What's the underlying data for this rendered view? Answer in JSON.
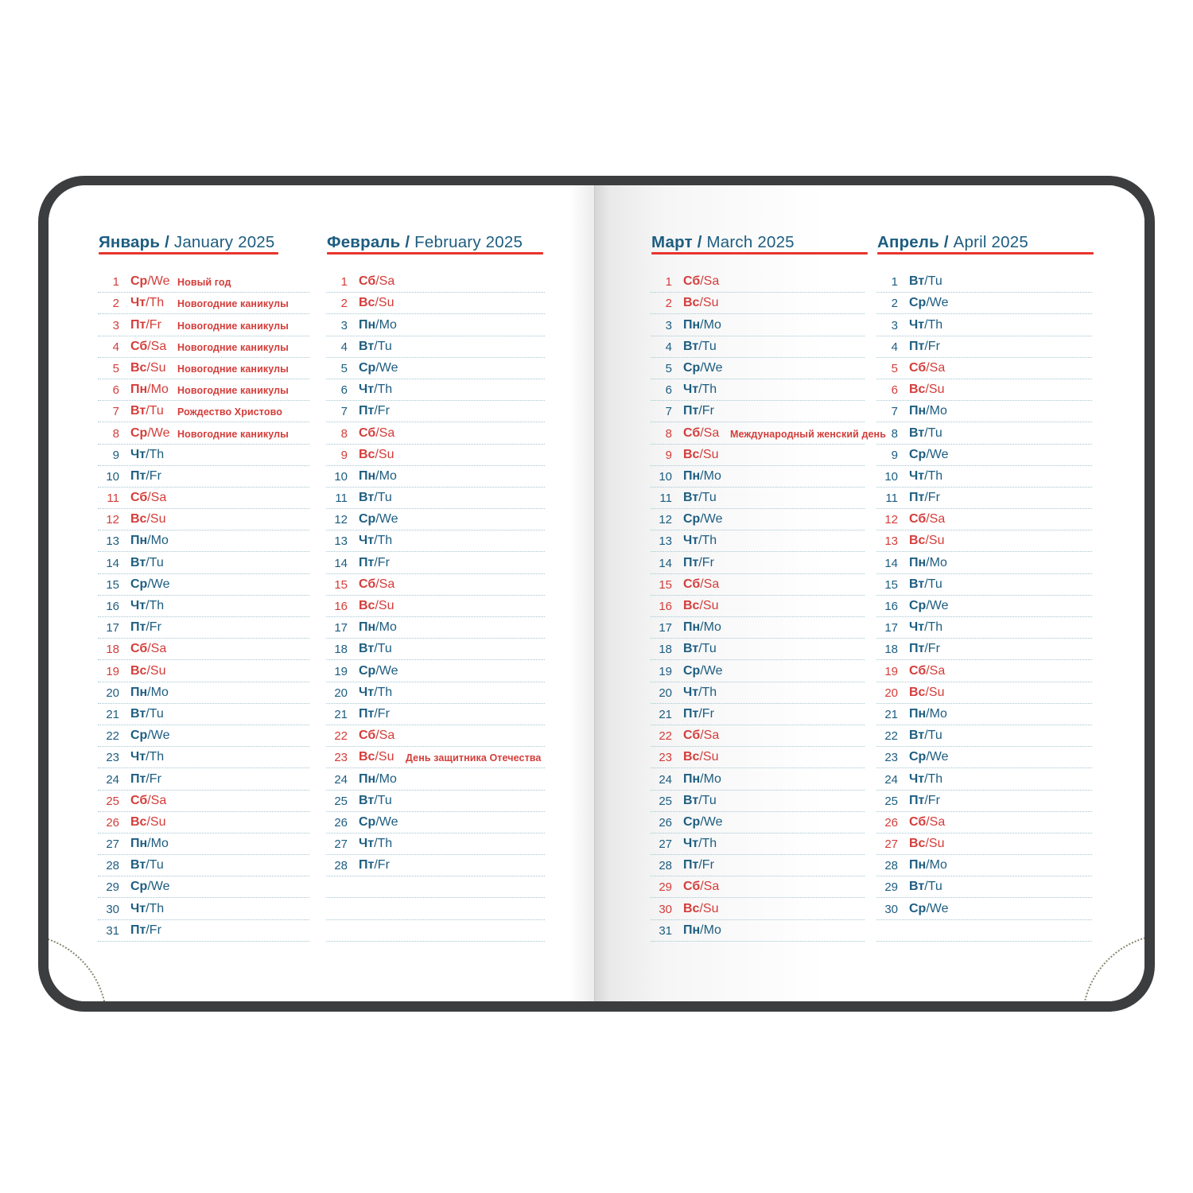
{
  "book": {
    "cover_color": "#3c3d3f",
    "text_blue": "#1d5d80",
    "text_red": "#d33d3a",
    "underline_red": "#e8342c",
    "row_line_blue": "#a3c6d2"
  },
  "months": [
    {
      "title_bold": "Январь /",
      "title_regular": "January 2025",
      "slots": 31,
      "days": [
        [
          1,
          "Ср",
          "We",
          1,
          "Новый год"
        ],
        [
          2,
          "Чт",
          "Th",
          1,
          "Новогодние каникулы"
        ],
        [
          3,
          "Пт",
          "Fr",
          1,
          "Новогодние каникулы"
        ],
        [
          4,
          "Сб",
          "Sa",
          1,
          "Новогодние каникулы"
        ],
        [
          5,
          "Вс",
          "Su",
          1,
          "Новогодние каникулы"
        ],
        [
          6,
          "Пн",
          "Mo",
          1,
          "Новогодние каникулы"
        ],
        [
          7,
          "Вт",
          "Tu",
          1,
          "Рождество Христово"
        ],
        [
          8,
          "Ср",
          "We",
          1,
          "Новогодние каникулы"
        ],
        [
          9,
          "Чт",
          "Th",
          0,
          ""
        ],
        [
          10,
          "Пт",
          "Fr",
          0,
          ""
        ],
        [
          11,
          "Сб",
          "Sa",
          1,
          ""
        ],
        [
          12,
          "Вс",
          "Su",
          1,
          ""
        ],
        [
          13,
          "Пн",
          "Mo",
          0,
          ""
        ],
        [
          14,
          "Вт",
          "Tu",
          0,
          ""
        ],
        [
          15,
          "Ср",
          "We",
          0,
          ""
        ],
        [
          16,
          "Чт",
          "Th",
          0,
          ""
        ],
        [
          17,
          "Пт",
          "Fr",
          0,
          ""
        ],
        [
          18,
          "Сб",
          "Sa",
          1,
          ""
        ],
        [
          19,
          "Вс",
          "Su",
          1,
          ""
        ],
        [
          20,
          "Пн",
          "Mo",
          0,
          ""
        ],
        [
          21,
          "Вт",
          "Tu",
          0,
          ""
        ],
        [
          22,
          "Ср",
          "We",
          0,
          ""
        ],
        [
          23,
          "Чт",
          "Th",
          0,
          ""
        ],
        [
          24,
          "Пт",
          "Fr",
          0,
          ""
        ],
        [
          25,
          "Сб",
          "Sa",
          1,
          ""
        ],
        [
          26,
          "Вс",
          "Su",
          1,
          ""
        ],
        [
          27,
          "Пн",
          "Mo",
          0,
          ""
        ],
        [
          28,
          "Вт",
          "Tu",
          0,
          ""
        ],
        [
          29,
          "Ср",
          "We",
          0,
          ""
        ],
        [
          30,
          "Чт",
          "Th",
          0,
          ""
        ],
        [
          31,
          "Пт",
          "Fr",
          0,
          ""
        ]
      ]
    },
    {
      "title_bold": "Февраль /",
      "title_regular": "February 2025",
      "slots": 31,
      "days": [
        [
          1,
          "Сб",
          "Sa",
          1,
          ""
        ],
        [
          2,
          "Вс",
          "Su",
          1,
          ""
        ],
        [
          3,
          "Пн",
          "Mo",
          0,
          ""
        ],
        [
          4,
          "Вт",
          "Tu",
          0,
          ""
        ],
        [
          5,
          "Ср",
          "We",
          0,
          ""
        ],
        [
          6,
          "Чт",
          "Th",
          0,
          ""
        ],
        [
          7,
          "Пт",
          "Fr",
          0,
          ""
        ],
        [
          8,
          "Сб",
          "Sa",
          1,
          ""
        ],
        [
          9,
          "Вс",
          "Su",
          1,
          ""
        ],
        [
          10,
          "Пн",
          "Mo",
          0,
          ""
        ],
        [
          11,
          "Вт",
          "Tu",
          0,
          ""
        ],
        [
          12,
          "Ср",
          "We",
          0,
          ""
        ],
        [
          13,
          "Чт",
          "Th",
          0,
          ""
        ],
        [
          14,
          "Пт",
          "Fr",
          0,
          ""
        ],
        [
          15,
          "Сб",
          "Sa",
          1,
          ""
        ],
        [
          16,
          "Вс",
          "Su",
          1,
          ""
        ],
        [
          17,
          "Пн",
          "Mo",
          0,
          ""
        ],
        [
          18,
          "Вт",
          "Tu",
          0,
          ""
        ],
        [
          19,
          "Ср",
          "We",
          0,
          ""
        ],
        [
          20,
          "Чт",
          "Th",
          0,
          ""
        ],
        [
          21,
          "Пт",
          "Fr",
          0,
          ""
        ],
        [
          22,
          "Сб",
          "Sa",
          1,
          ""
        ],
        [
          23,
          "Вс",
          "Su",
          1,
          "День защитника Отечества"
        ],
        [
          24,
          "Пн",
          "Mo",
          0,
          ""
        ],
        [
          25,
          "Вт",
          "Tu",
          0,
          ""
        ],
        [
          26,
          "Ср",
          "We",
          0,
          ""
        ],
        [
          27,
          "Чт",
          "Th",
          0,
          ""
        ],
        [
          28,
          "Пт",
          "Fr",
          0,
          ""
        ]
      ]
    },
    {
      "title_bold": "Март /",
      "title_regular": "March 2025",
      "slots": 31,
      "days": [
        [
          1,
          "Сб",
          "Sa",
          1,
          ""
        ],
        [
          2,
          "Вс",
          "Su",
          1,
          ""
        ],
        [
          3,
          "Пн",
          "Mo",
          0,
          ""
        ],
        [
          4,
          "Вт",
          "Tu",
          0,
          ""
        ],
        [
          5,
          "Ср",
          "We",
          0,
          ""
        ],
        [
          6,
          "Чт",
          "Th",
          0,
          ""
        ],
        [
          7,
          "Пт",
          "Fr",
          0,
          ""
        ],
        [
          8,
          "Сб",
          "Sa",
          1,
          "Международный женский день"
        ],
        [
          9,
          "Вс",
          "Su",
          1,
          ""
        ],
        [
          10,
          "Пн",
          "Mo",
          0,
          ""
        ],
        [
          11,
          "Вт",
          "Tu",
          0,
          ""
        ],
        [
          12,
          "Ср",
          "We",
          0,
          ""
        ],
        [
          13,
          "Чт",
          "Th",
          0,
          ""
        ],
        [
          14,
          "Пт",
          "Fr",
          0,
          ""
        ],
        [
          15,
          "Сб",
          "Sa",
          1,
          ""
        ],
        [
          16,
          "Вс",
          "Su",
          1,
          ""
        ],
        [
          17,
          "Пн",
          "Mo",
          0,
          ""
        ],
        [
          18,
          "Вт",
          "Tu",
          0,
          ""
        ],
        [
          19,
          "Ср",
          "We",
          0,
          ""
        ],
        [
          20,
          "Чт",
          "Th",
          0,
          ""
        ],
        [
          21,
          "Пт",
          "Fr",
          0,
          ""
        ],
        [
          22,
          "Сб",
          "Sa",
          1,
          ""
        ],
        [
          23,
          "Вс",
          "Su",
          1,
          ""
        ],
        [
          24,
          "Пн",
          "Mo",
          0,
          ""
        ],
        [
          25,
          "Вт",
          "Tu",
          0,
          ""
        ],
        [
          26,
          "Ср",
          "We",
          0,
          ""
        ],
        [
          27,
          "Чт",
          "Th",
          0,
          ""
        ],
        [
          28,
          "Пт",
          "Fr",
          0,
          ""
        ],
        [
          29,
          "Сб",
          "Sa",
          1,
          ""
        ],
        [
          30,
          "Вс",
          "Su",
          1,
          ""
        ],
        [
          31,
          "Пн",
          "Mo",
          0,
          ""
        ]
      ]
    },
    {
      "title_bold": "Апрель /",
      "title_regular": "April 2025",
      "slots": 31,
      "days": [
        [
          1,
          "Вт",
          "Tu",
          0,
          ""
        ],
        [
          2,
          "Ср",
          "We",
          0,
          ""
        ],
        [
          3,
          "Чт",
          "Th",
          0,
          ""
        ],
        [
          4,
          "Пт",
          "Fr",
          0,
          ""
        ],
        [
          5,
          "Сб",
          "Sa",
          1,
          ""
        ],
        [
          6,
          "Вс",
          "Su",
          1,
          ""
        ],
        [
          7,
          "Пн",
          "Mo",
          0,
          ""
        ],
        [
          8,
          "Вт",
          "Tu",
          0,
          ""
        ],
        [
          9,
          "Ср",
          "We",
          0,
          ""
        ],
        [
          10,
          "Чт",
          "Th",
          0,
          ""
        ],
        [
          11,
          "Пт",
          "Fr",
          0,
          ""
        ],
        [
          12,
          "Сб",
          "Sa",
          1,
          ""
        ],
        [
          13,
          "Вс",
          "Su",
          1,
          ""
        ],
        [
          14,
          "Пн",
          "Mo",
          0,
          ""
        ],
        [
          15,
          "Вт",
          "Tu",
          0,
          ""
        ],
        [
          16,
          "Ср",
          "We",
          0,
          ""
        ],
        [
          17,
          "Чт",
          "Th",
          0,
          ""
        ],
        [
          18,
          "Пт",
          "Fr",
          0,
          ""
        ],
        [
          19,
          "Сб",
          "Sa",
          1,
          ""
        ],
        [
          20,
          "Вс",
          "Su",
          1,
          ""
        ],
        [
          21,
          "Пн",
          "Mo",
          0,
          ""
        ],
        [
          22,
          "Вт",
          "Tu",
          0,
          ""
        ],
        [
          23,
          "Ср",
          "We",
          0,
          ""
        ],
        [
          24,
          "Чт",
          "Th",
          0,
          ""
        ],
        [
          25,
          "Пт",
          "Fr",
          0,
          ""
        ],
        [
          26,
          "Сб",
          "Sa",
          1,
          ""
        ],
        [
          27,
          "Вс",
          "Su",
          1,
          ""
        ],
        [
          28,
          "Пн",
          "Mo",
          0,
          ""
        ],
        [
          29,
          "Вт",
          "Tu",
          0,
          ""
        ],
        [
          30,
          "Ср",
          "We",
          0,
          ""
        ]
      ]
    }
  ]
}
